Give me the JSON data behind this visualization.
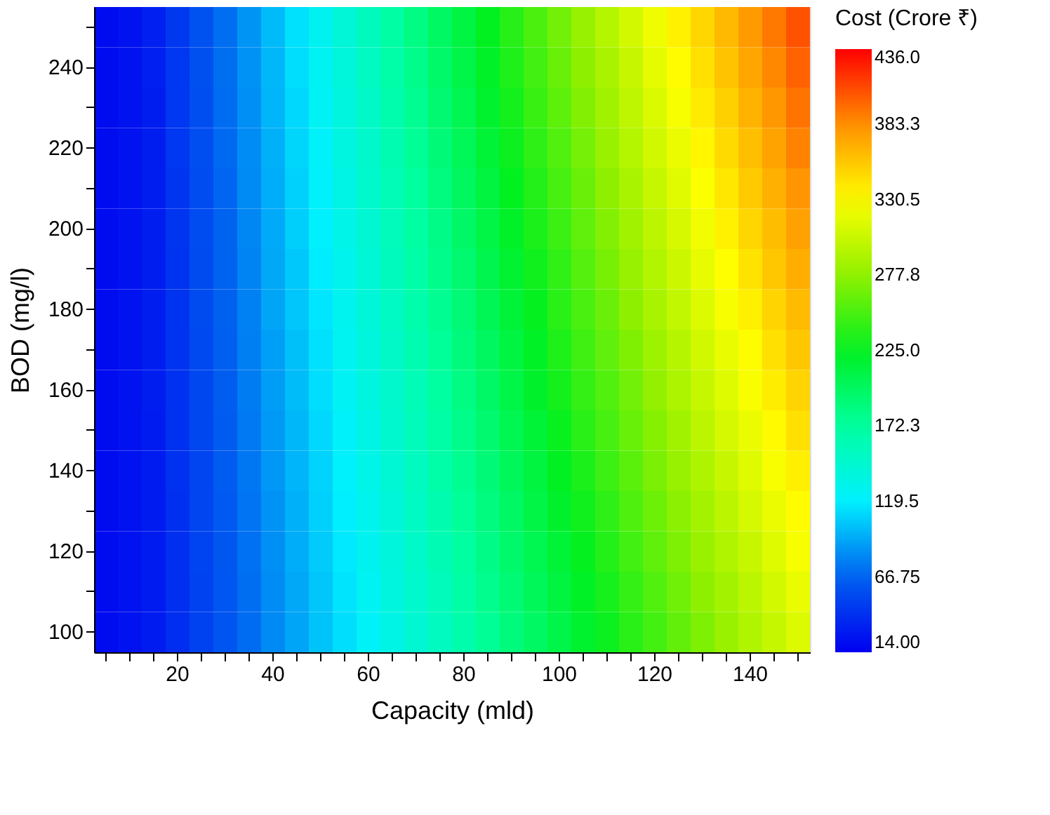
{
  "chart_data": {
    "type": "heatmap",
    "xlabel": "Capacity (mld)",
    "ylabel": "BOD (mg/l)",
    "clabel": "Cost (Crore ₹)",
    "categories": [
      null,
      null,
      null,
      "20",
      null,
      null,
      null,
      "40",
      null,
      null,
      null,
      "60",
      null,
      null,
      null,
      "80",
      null,
      null,
      null,
      "100",
      null,
      null,
      null,
      "120",
      null,
      null,
      null,
      "140",
      null,
      null
    ],
    "y_categories": [
      null,
      "240",
      null,
      "220",
      null,
      "200",
      null,
      "180",
      null,
      "160",
      null,
      "140",
      null,
      "120",
      null,
      "100"
    ],
    "clim": [
      14,
      436
    ],
    "cticks": [
      {
        "value": 14,
        "label": "14.00"
      },
      66.75,
      119.5,
      172.3,
      {
        "value": 225,
        "label": "225.0"
      },
      277.8,
      330.5,
      383.3,
      {
        "value": 436,
        "label": "436.0"
      }
    ],
    "cells": [
      [
        20,
        24,
        31,
        45,
        59,
        72,
        86,
        100,
        114,
        128,
        142,
        156,
        170,
        184,
        198,
        211,
        225,
        239,
        253,
        267,
        281,
        295,
        309,
        323,
        337,
        350,
        364,
        378,
        392,
        406
      ],
      [
        20,
        24,
        31,
        44,
        58,
        72,
        85,
        99,
        113,
        126,
        140,
        154,
        167,
        181,
        195,
        208,
        222,
        236,
        249,
        263,
        277,
        290,
        304,
        318,
        332,
        345,
        359,
        373,
        386,
        400
      ],
      [
        20,
        24,
        30,
        44,
        57,
        71,
        84,
        98,
        111,
        125,
        138,
        151,
        165,
        178,
        192,
        205,
        219,
        232,
        246,
        259,
        273,
        286,
        299,
        313,
        326,
        340,
        353,
        367,
        380,
        394
      ],
      [
        20,
        24,
        30,
        44,
        57,
        70,
        83,
        96,
        110,
        123,
        136,
        149,
        163,
        176,
        189,
        202,
        216,
        229,
        242,
        255,
        268,
        282,
        295,
        308,
        321,
        335,
        348,
        361,
        374,
        388
      ],
      [
        20,
        24,
        30,
        43,
        56,
        69,
        82,
        95,
        108,
        121,
        134,
        147,
        160,
        173,
        186,
        199,
        212,
        225,
        238,
        251,
        264,
        277,
        290,
        303,
        316,
        329,
        342,
        355,
        368,
        381
      ],
      [
        20,
        24,
        30,
        43,
        56,
        68,
        81,
        94,
        107,
        120,
        132,
        145,
        158,
        171,
        183,
        196,
        209,
        222,
        235,
        247,
        260,
        273,
        286,
        298,
        311,
        324,
        337,
        350,
        362,
        375
      ],
      [
        20,
        24,
        30,
        42,
        55,
        68,
        80,
        93,
        105,
        118,
        130,
        143,
        156,
        168,
        181,
        193,
        206,
        218,
        231,
        243,
        256,
        269,
        281,
        294,
        306,
        319,
        331,
        344,
        357,
        369
      ],
      [
        20,
        24,
        30,
        42,
        55,
        67,
        79,
        92,
        104,
        116,
        129,
        141,
        153,
        166,
        178,
        190,
        203,
        215,
        227,
        240,
        252,
        264,
        277,
        289,
        301,
        314,
        326,
        338,
        351,
        363
      ],
      [
        20,
        24,
        30,
        42,
        54,
        66,
        78,
        90,
        102,
        114,
        127,
        139,
        151,
        163,
        175,
        187,
        199,
        211,
        223,
        236,
        248,
        260,
        272,
        284,
        296,
        308,
        320,
        332,
        345,
        357
      ],
      [
        20,
        24,
        30,
        41,
        53,
        65,
        77,
        89,
        101,
        113,
        125,
        137,
        148,
        160,
        172,
        184,
        196,
        208,
        220,
        232,
        244,
        255,
        267,
        279,
        291,
        303,
        315,
        327,
        339,
        351
      ],
      [
        20,
        24,
        29,
        41,
        53,
        64,
        76,
        88,
        99,
        111,
        123,
        134,
        146,
        158,
        169,
        181,
        193,
        205,
        216,
        228,
        240,
        251,
        263,
        274,
        286,
        298,
        310,
        321,
        333,
        345
      ],
      [
        20,
        24,
        29,
        41,
        52,
        64,
        75,
        87,
        98,
        109,
        121,
        132,
        144,
        155,
        167,
        178,
        189,
        201,
        212,
        224,
        235,
        247,
        258,
        270,
        281,
        292,
        304,
        315,
        327,
        338
      ],
      [
        20,
        24,
        29,
        40,
        52,
        63,
        74,
        85,
        96,
        108,
        119,
        130,
        141,
        153,
        164,
        175,
        186,
        197,
        209,
        220,
        231,
        242,
        254,
        265,
        276,
        287,
        298,
        310,
        321,
        332
      ],
      [
        20,
        24,
        29,
        40,
        51,
        62,
        73,
        84,
        95,
        106,
        117,
        128,
        139,
        150,
        161,
        172,
        183,
        194,
        205,
        216,
        227,
        238,
        249,
        260,
        271,
        282,
        293,
        304,
        315,
        326
      ],
      [
        20,
        24,
        29,
        40,
        50,
        61,
        72,
        83,
        93,
        104,
        115,
        126,
        137,
        147,
        158,
        169,
        180,
        190,
        201,
        212,
        223,
        233,
        244,
        255,
        266,
        277,
        287,
        298,
        309,
        320
      ],
      [
        20,
        24,
        29,
        39,
        50,
        60,
        71,
        82,
        92,
        103,
        113,
        124,
        134,
        145,
        155,
        166,
        176,
        187,
        198,
        208,
        219,
        229,
        240,
        250,
        261,
        271,
        282,
        293,
        303,
        314
      ]
    ]
  }
}
